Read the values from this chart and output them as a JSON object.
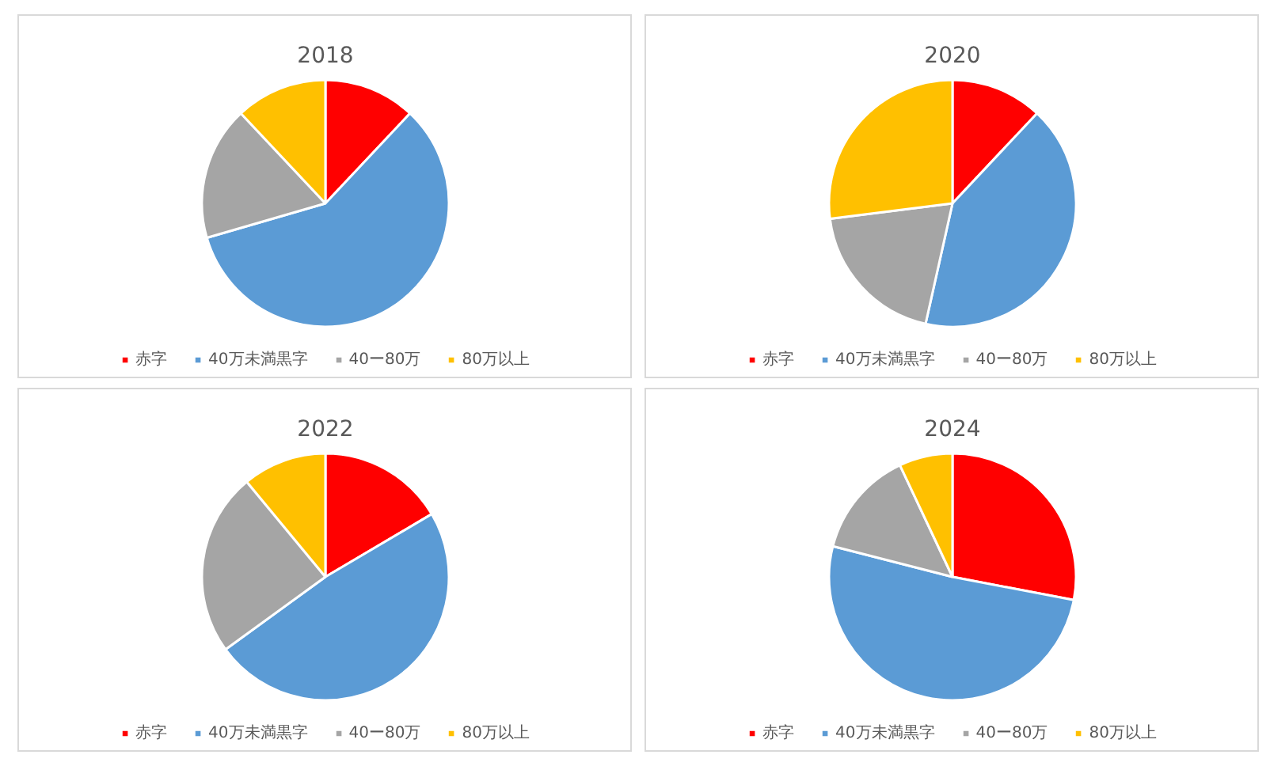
{
  "chart_data": [
    {
      "type": "pie",
      "title": "2018",
      "categories": [
        "赤字",
        "40万未満黒字",
        "40ー80万",
        "80万以上"
      ],
      "values": [
        12,
        58.5,
        17.5,
        12
      ],
      "colors": [
        "#ff0000",
        "#5b9bd5",
        "#a5a5a5",
        "#ffc000"
      ],
      "legend": "bottom"
    },
    {
      "type": "pie",
      "title": "2020",
      "categories": [
        "赤字",
        "40万未満黒字",
        "40ー80万",
        "80万以上"
      ],
      "values": [
        12,
        41.5,
        19.5,
        27
      ],
      "colors": [
        "#ff0000",
        "#5b9bd5",
        "#a5a5a5",
        "#ffc000"
      ],
      "legend": "bottom"
    },
    {
      "type": "pie",
      "title": "2022",
      "categories": [
        "赤字",
        "40万未満黒字",
        "40ー80万",
        "80万以上"
      ],
      "values": [
        16.5,
        48.5,
        24,
        11
      ],
      "colors": [
        "#ff0000",
        "#5b9bd5",
        "#a5a5a5",
        "#ffc000"
      ],
      "legend": "bottom"
    },
    {
      "type": "pie",
      "title": "2024",
      "categories": [
        "赤字",
        "40万未満黒字",
        "40ー80万",
        "80万以上"
      ],
      "values": [
        28,
        51,
        14,
        7
      ],
      "colors": [
        "#ff0000",
        "#5b9bd5",
        "#a5a5a5",
        "#ffc000"
      ],
      "legend": "bottom"
    }
  ]
}
